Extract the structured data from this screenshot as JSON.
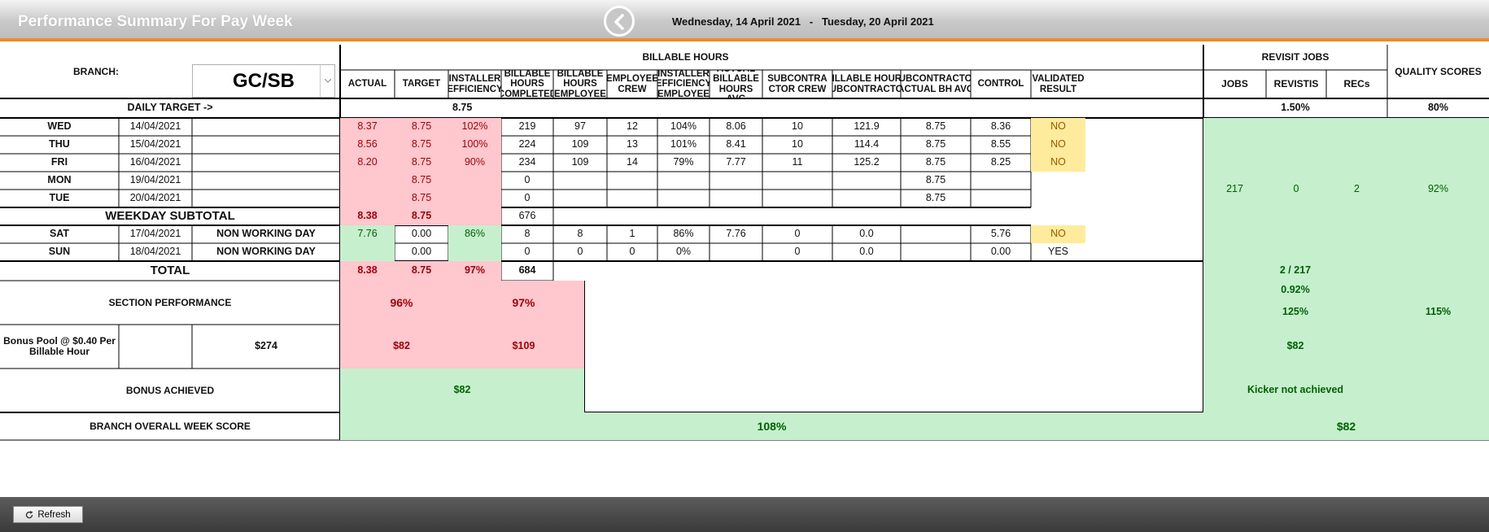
{
  "header": {
    "title": "Performance Summary For Pay Week",
    "date_range": "Wednesday, 14 April 2021   -   Tuesday, 20 April 2021",
    "back_icon": "chevron-left-circle-icon"
  },
  "branch": {
    "label": "BRANCH:",
    "value": "GC/SB"
  },
  "billable_hours": {
    "group_label": "BILLABLE HOURS",
    "columns": [
      "ACTUAL",
      "TARGET",
      "INSTALLER EFFICIENCY",
      "BILLABLE HOURS COMPLETED",
      "BILLABLE HOURS EMPLOYEE",
      "EMPLOYEE CREW",
      "INSTALLER EFFICIENCY EMPLOYEE",
      "ACTUAL BILLABLE HOURS AVG",
      "SUBCONTRACTOR CREW",
      "BILLABLE HOURS SUBCONTRACTOR",
      "SUBCONTRACTOR ACTUAL BH AVG",
      "CONTROL",
      "VALIDATED RESULT"
    ],
    "columns_display": [
      "ACTUAL",
      "TARGET",
      "INSTALLER\nEFFICIENCY",
      "BILLABLE\nHOURS\nCOMPLETED",
      "BILLABLE\nHOURS\nEMPLOYEE",
      "EMPLOYEE\nCREW",
      "INSTALLER\nEFFICIENCY\nEMPLOYEE",
      "ACTUAL\nBILLABLE\nHOURS AVG",
      "SUBCONTRA\nCTOR CREW",
      "BILLABLE HOURS\nSUBCONTRACTOR",
      "SUBCONTRACTOR\nACTUAL BH AVG",
      "CONTROL",
      "VALIDATED\nRESULT"
    ]
  },
  "revisit": {
    "group_label": "REVISIT JOBS",
    "columns": [
      "JOBS",
      "REVISTIS",
      "RECs"
    ]
  },
  "quality": {
    "label": "QUALITY SCORES"
  },
  "daily_target": {
    "label": "DAILY TARGET ->",
    "value": "8.75",
    "revisit_value": "1.50%",
    "quality_value": "80%"
  },
  "days": [
    {
      "day": "WED",
      "date": "14/04/2021",
      "note": "",
      "cells": [
        "8.37",
        "8.75",
        "102%",
        "219",
        "97",
        "12",
        "104%",
        "8.06",
        "10",
        "121.9",
        "8.75",
        "8.36",
        "NO"
      ]
    },
    {
      "day": "THU",
      "date": "15/04/2021",
      "note": "",
      "cells": [
        "8.56",
        "8.75",
        "100%",
        "224",
        "109",
        "13",
        "101%",
        "8.41",
        "10",
        "114.4",
        "8.75",
        "8.55",
        "NO"
      ]
    },
    {
      "day": "FRI",
      "date": "16/04/2021",
      "note": "",
      "cells": [
        "8.20",
        "8.75",
        "90%",
        "234",
        "109",
        "14",
        "79%",
        "7.77",
        "11",
        "125.2",
        "8.75",
        "8.25",
        "NO"
      ]
    },
    {
      "day": "MON",
      "date": "19/04/2021",
      "note": "",
      "cells": [
        "",
        "8.75",
        "",
        "0",
        "",
        "",
        "",
        "",
        "",
        "",
        "8.75",
        "",
        ""
      ]
    },
    {
      "day": "TUE",
      "date": "20/04/2021",
      "note": "",
      "cells": [
        "",
        "8.75",
        "",
        "0",
        "",
        "",
        "",
        "",
        "",
        "",
        "8.75",
        "",
        ""
      ]
    }
  ],
  "weekday_subtotal": {
    "label": "WEEKDAY SUBTOTAL",
    "actual": "8.38",
    "target": "8.75",
    "efficiency": "",
    "completed": "676"
  },
  "weekend": [
    {
      "day": "SAT",
      "date": "17/04/2021",
      "note": "NON WORKING DAY",
      "cells": [
        "7.76",
        "0.00",
        "86%",
        "8",
        "8",
        "1",
        "86%",
        "7.76",
        "0",
        "0.0",
        "",
        "5.76",
        "NO"
      ]
    },
    {
      "day": "SUN",
      "date": "18/04/2021",
      "note": "NON WORKING DAY",
      "cells": [
        "",
        "0.00",
        "",
        "0",
        "0",
        "0",
        "0%",
        "",
        "0",
        "0.0",
        "",
        "0.00",
        "YES"
      ]
    }
  ],
  "revisit_values": {
    "jobs": "217",
    "revisits": "0",
    "recs": "2",
    "quality": "92%"
  },
  "total": {
    "label": "TOTAL",
    "actual": "8.38",
    "target": "8.75",
    "efficiency": "97%",
    "completed": "684",
    "revisit": "2 / 217"
  },
  "revisit_pct": "0.92%",
  "section_performance": {
    "label": "SECTION PERFORMANCE",
    "left": "96%",
    "right": "97%",
    "revisit": "125%",
    "quality": "115%"
  },
  "bonus_pool": {
    "label": "Bonus Pool @ $0.40 Per Billable Hour",
    "amount": "$274",
    "left": "$82",
    "right": "$109",
    "revisit": "$82"
  },
  "bonus_achieved": {
    "label": "BONUS ACHIEVED",
    "value": "$82",
    "kicker": "Kicker not achieved"
  },
  "overall": {
    "label": "BRANCH OVERALL WEEK SCORE",
    "value": "108%",
    "amount": "$82"
  },
  "footer": {
    "refresh_label": "Refresh",
    "refresh_icon": "refresh-icon"
  },
  "colors": {
    "accent": "#ef8a2a",
    "pink": "#ffc7ce",
    "green": "#c6efce",
    "yellow": "#ffeb9c"
  }
}
